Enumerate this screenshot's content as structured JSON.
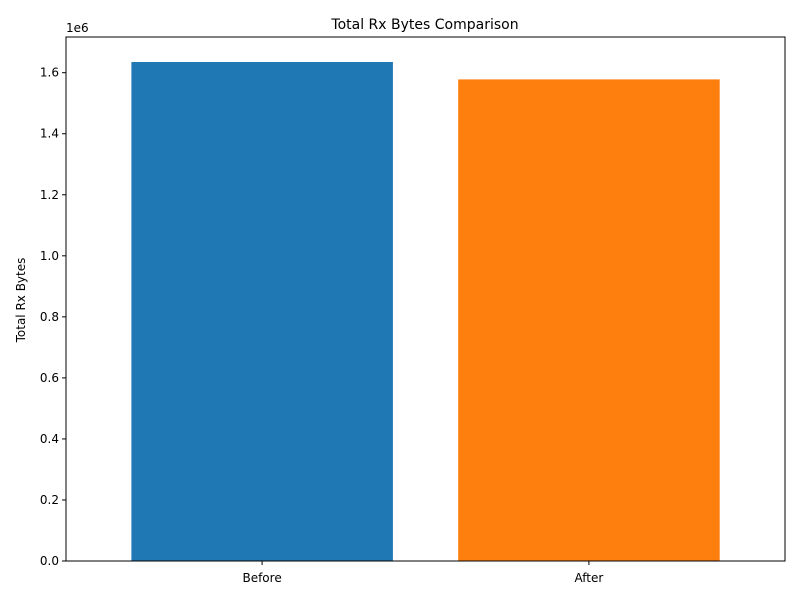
{
  "chart_data": {
    "type": "bar",
    "title": "Total Rx Bytes Comparison",
    "xlabel": "",
    "ylabel": "Total Rx Bytes",
    "categories": [
      "Before",
      "After"
    ],
    "values": [
      1635000,
      1578000
    ],
    "colors": [
      "#1f77b4",
      "#ff7f0e"
    ],
    "ylim": [
      0,
      1717000
    ],
    "yticks": [
      0,
      200000,
      400000,
      600000,
      800000,
      1000000,
      1200000,
      1400000,
      1600000
    ],
    "ytick_labels": [
      "0.0",
      "0.2",
      "0.4",
      "0.6",
      "0.8",
      "1.0",
      "1.2",
      "1.4",
      "1.6"
    ],
    "offset_text": "1e6",
    "grid": false,
    "legend": "none"
  }
}
